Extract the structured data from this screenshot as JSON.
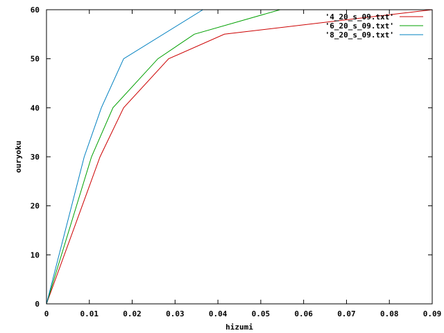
{
  "chart_data": {
    "type": "line",
    "title": "",
    "xlabel": "hizumi",
    "ylabel": "ouryoku",
    "xlim": [
      0,
      0.09
    ],
    "ylim": [
      0,
      60
    ],
    "x_ticks": [
      0,
      0.01,
      0.02,
      0.03,
      0.04,
      0.05,
      0.06,
      0.07,
      0.08,
      0.09
    ],
    "x_tick_labels": [
      "0",
      "0.01",
      "0.02",
      "0.03",
      "0.04",
      "0.05",
      "0.06",
      "0.07",
      "0.08",
      "0.09"
    ],
    "y_ticks": [
      0,
      10,
      20,
      30,
      40,
      50,
      60
    ],
    "y_tick_labels": [
      "0",
      "10",
      "20",
      "30",
      "40",
      "50",
      "60"
    ],
    "grid": false,
    "legend_position": "top-right",
    "series": [
      {
        "name": "'4_20_s_09.txt'",
        "color": "#cc0000",
        "x": [
          0,
          0.0125,
          0.018,
          0.0285,
          0.0415,
          0.09
        ],
        "y": [
          0,
          30,
          40,
          50,
          55,
          60
        ]
      },
      {
        "name": "'6_20_s_09.txt'",
        "color": "#00a000",
        "x": [
          0,
          0.0105,
          0.0155,
          0.026,
          0.0345,
          0.0545
        ],
        "y": [
          0,
          30,
          40,
          50,
          55,
          60
        ]
      },
      {
        "name": "'8_20_s_09.txt'",
        "color": "#0080c0",
        "x": [
          0,
          0.0088,
          0.0128,
          0.018,
          0.0365
        ],
        "y": [
          0,
          30,
          40,
          50,
          60
        ]
      }
    ]
  }
}
